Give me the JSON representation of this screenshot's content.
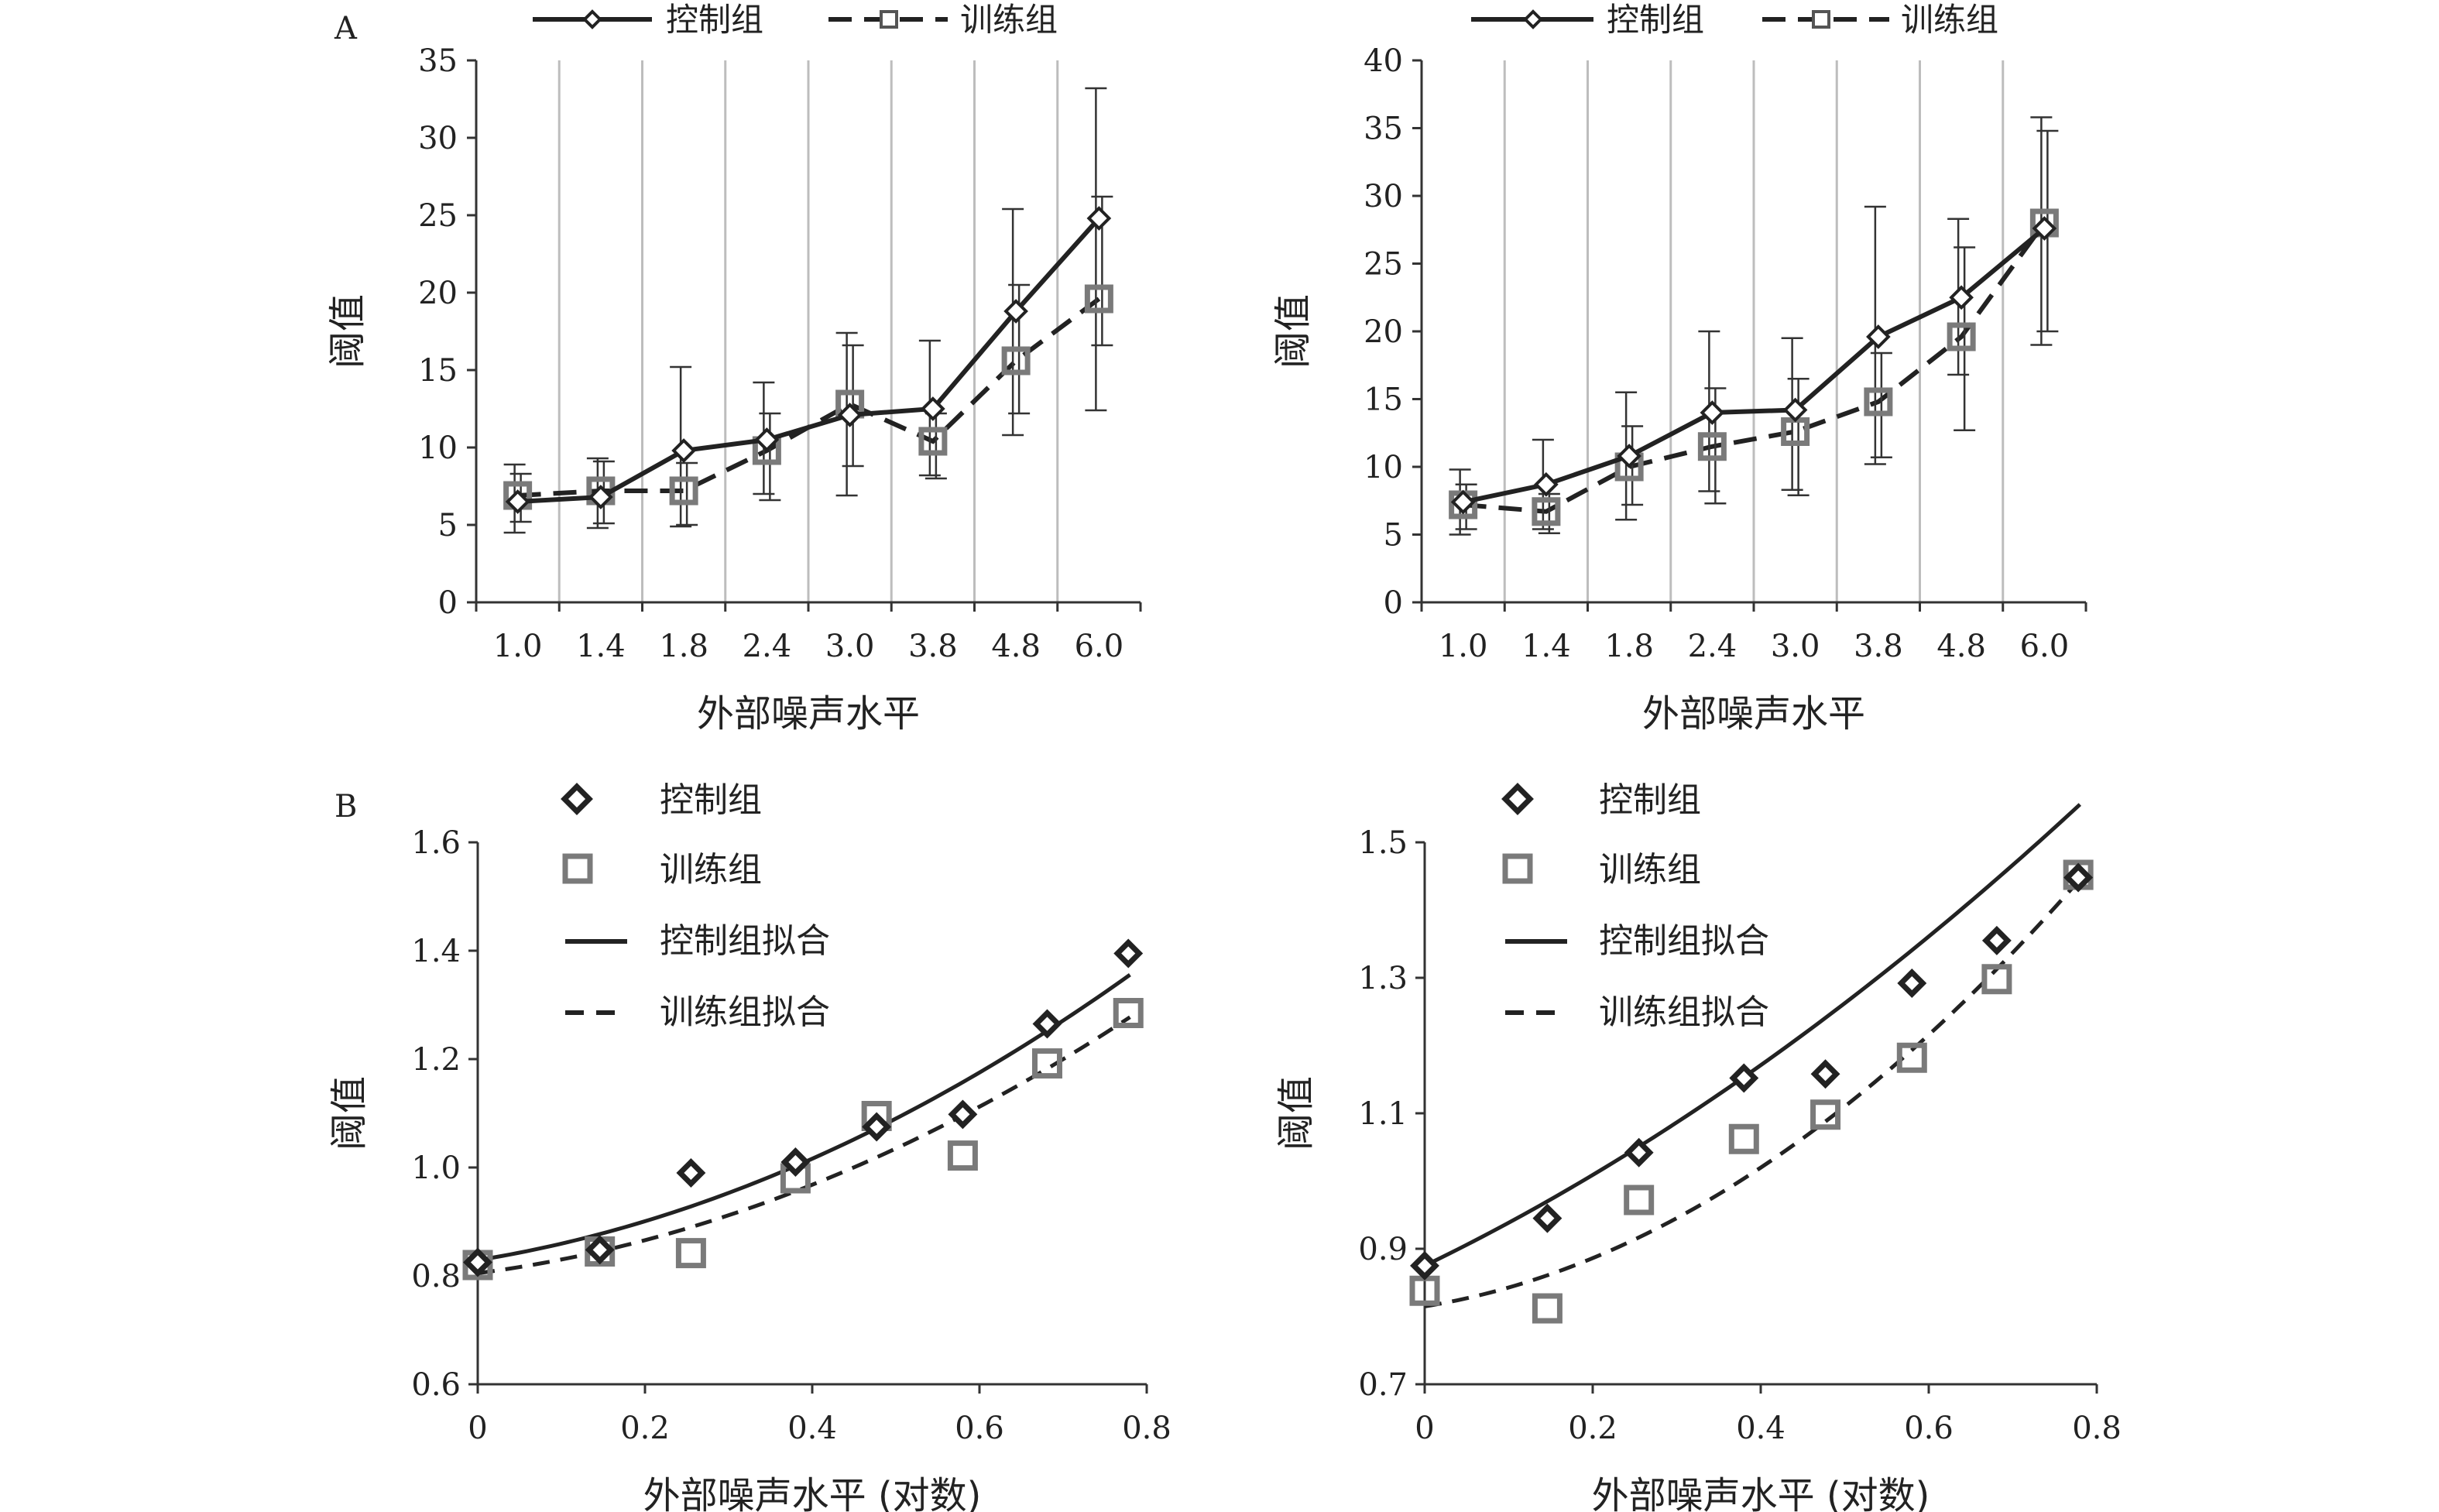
{
  "panel_labels": {
    "A": "A",
    "B": "B"
  },
  "legend_labels": {
    "control": "控制组",
    "training": "训练组",
    "control_fit": "控制组拟合",
    "training_fit": "训练组拟合"
  },
  "colors": {
    "control": "#222222",
    "training": "#7a7a7a",
    "grid": "#bdbdbd",
    "axis": "#333333"
  },
  "chart_data": [
    {
      "id": "A-left",
      "type": "line",
      "categories": [
        "1.0",
        "1.4",
        "1.8",
        "2.4",
        "3.0",
        "3.8",
        "4.8",
        "6.0"
      ],
      "series": [
        {
          "name": "控制组",
          "values": [
            6.5,
            6.8,
            9.8,
            10.5,
            12.1,
            12.5,
            18.8,
            24.8
          ],
          "err_high": [
            8.9,
            9.3,
            15.2,
            14.2,
            17.4,
            16.9,
            25.4,
            33.2
          ],
          "err_low": [
            4.5,
            4.8,
            4.9,
            7.0,
            6.9,
            8.2,
            10.8,
            12.4
          ]
        },
        {
          "name": "训练组",
          "values": [
            6.9,
            7.2,
            7.2,
            9.8,
            12.8,
            10.4,
            15.6,
            19.6
          ],
          "err_high": [
            8.3,
            9.1,
            9.0,
            12.2,
            16.6,
            12.2,
            20.5,
            26.2
          ],
          "err_low": [
            5.2,
            5.1,
            5.0,
            6.6,
            8.8,
            8.0,
            12.2,
            16.6
          ]
        }
      ],
      "xlabel": "外部噪声水平",
      "ylabel": "阈值",
      "ylim": [
        0,
        35
      ],
      "yticks": [
        0,
        5,
        10,
        15,
        20,
        25,
        30,
        35
      ],
      "grid": "vertical"
    },
    {
      "id": "A-right",
      "type": "line",
      "categories": [
        "1.0",
        "1.4",
        "1.8",
        "2.4",
        "3.0",
        "3.8",
        "4.8",
        "6.0"
      ],
      "series": [
        {
          "name": "控制组",
          "values": [
            7.4,
            8.7,
            10.8,
            14.0,
            14.2,
            19.6,
            22.5,
            27.6
          ],
          "err_high": [
            9.8,
            12.0,
            15.5,
            20.0,
            19.5,
            29.2,
            28.3,
            35.8
          ],
          "err_low": [
            5.0,
            5.4,
            6.1,
            8.2,
            8.3,
            10.2,
            16.8,
            19.0
          ]
        },
        {
          "name": "训练组",
          "values": [
            7.2,
            6.7,
            10.0,
            11.5,
            12.6,
            14.8,
            19.6,
            28.0
          ],
          "err_high": [
            8.7,
            8.0,
            13.0,
            15.8,
            16.5,
            18.4,
            26.2,
            34.8
          ],
          "err_low": [
            5.4,
            5.1,
            7.2,
            7.3,
            7.9,
            10.7,
            12.7,
            20.0
          ]
        }
      ],
      "xlabel": "外部噪声水平",
      "ylabel": "阈值",
      "ylim": [
        0,
        40
      ],
      "yticks": [
        0,
        5,
        10,
        15,
        20,
        25,
        30,
        35,
        40
      ],
      "grid": "vertical"
    },
    {
      "id": "B-left",
      "type": "scatter",
      "series": [
        {
          "name": "控制组",
          "x": [
            0.0,
            0.146,
            0.255,
            0.38,
            0.477,
            0.58,
            0.681,
            0.778
          ],
          "y": [
            0.825,
            0.848,
            0.99,
            1.01,
            1.075,
            1.098,
            1.265,
            1.395
          ]
        },
        {
          "name": "训练组",
          "x": [
            0.0,
            0.146,
            0.255,
            0.38,
            0.477,
            0.58,
            0.681,
            0.778
          ],
          "y": [
            0.82,
            0.845,
            0.842,
            0.98,
            1.095,
            1.022,
            1.192,
            1.285
          ]
        }
      ],
      "fits": [
        {
          "name": "控制组拟合",
          "style": "solid",
          "a": 0.829,
          "b": 0.25,
          "c": 0.545
        },
        {
          "name": "训练组拟合",
          "style": "dashed",
          "a": 0.805,
          "b": 0.2,
          "c": 0.52
        }
      ],
      "xlabel": "外部噪声水平 (对数)",
      "ylabel": "阈值",
      "xlim": [
        0,
        0.8
      ],
      "ylim": [
        0.6,
        1.6
      ],
      "xticks": [
        0,
        0.2,
        0.4,
        0.6,
        0.8
      ],
      "yticks": [
        0.6,
        0.8,
        1.0,
        1.2,
        1.4,
        1.6
      ],
      "xtick_labels": [
        "0",
        "0.2",
        "0.4",
        "0.6",
        "0.8"
      ],
      "ytick_labels": [
        "0.6",
        "0.8",
        "1.0",
        "1.2",
        "1.4",
        "1.6"
      ]
    },
    {
      "id": "B-right",
      "type": "scatter",
      "series": [
        {
          "name": "控制组",
          "x": [
            0.0,
            0.146,
            0.255,
            0.38,
            0.477,
            0.58,
            0.681,
            0.778
          ],
          "y": [
            0.875,
            0.945,
            1.042,
            1.152,
            1.158,
            1.292,
            1.355,
            1.448
          ]
        },
        {
          "name": "训练组",
          "x": [
            0.0,
            0.146,
            0.255,
            0.38,
            0.477,
            0.58,
            0.681,
            0.778
          ],
          "y": [
            0.838,
            0.812,
            0.972,
            1.062,
            1.098,
            1.182,
            1.298,
            1.452
          ]
        }
      ],
      "fits": [
        {
          "name": "控制组拟合",
          "style": "solid",
          "a": 0.875,
          "b": 0.6,
          "c": 0.35
        },
        {
          "name": "训练组拟合",
          "style": "dashed",
          "a": 0.815,
          "b": 0.2,
          "c": 0.78
        }
      ],
      "xlabel": "外部噪声水平 (对数)",
      "ylabel": "阈值",
      "xlim": [
        0,
        0.8
      ],
      "ylim": [
        0.7,
        1.5
      ],
      "xticks": [
        0,
        0.2,
        0.4,
        0.6,
        0.8
      ],
      "yticks": [
        0.7,
        0.9,
        1.1,
        1.3,
        1.5
      ],
      "xtick_labels": [
        "0",
        "0.2",
        "0.4",
        "0.6",
        "0.8"
      ],
      "ytick_labels": [
        "0.7",
        "0.9",
        "1.1",
        "1.3",
        "1.5"
      ]
    }
  ]
}
